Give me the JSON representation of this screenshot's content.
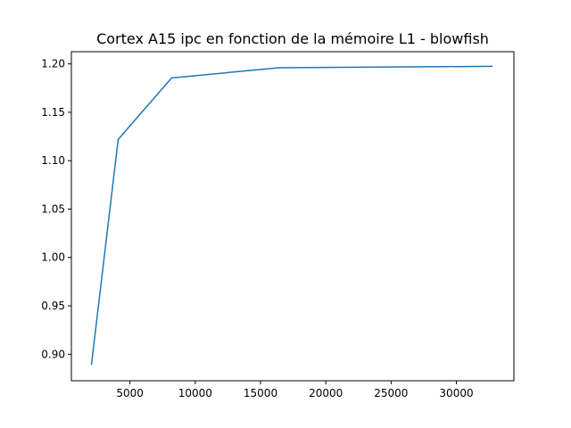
{
  "chart_data": {
    "type": "line",
    "title": "Cortex A15 ipc en fonction de la mémoire L1 - blowfish",
    "xlabel": "",
    "ylabel": "",
    "xlim": [
      512,
      34406
    ],
    "ylim": [
      0.8726,
      1.2126
    ],
    "xticks": [
      5000,
      10000,
      15000,
      20000,
      25000,
      30000
    ],
    "yticks": [
      0.9,
      0.95,
      1.0,
      1.05,
      1.1,
      1.15,
      1.2
    ],
    "xtick_labels": [
      "5000",
      "10000",
      "15000",
      "20000",
      "25000",
      "30000"
    ],
    "ytick_labels": [
      "0.90",
      "0.95",
      "1.00",
      "1.05",
      "1.10",
      "1.15",
      "1.20"
    ],
    "grid": false,
    "legend": "none",
    "series": [
      {
        "color": "#1f77b4",
        "x": [
          2048,
          4096,
          8192,
          16384,
          32768
        ],
        "y": [
          0.889,
          1.122,
          1.1855,
          1.196,
          1.1975
        ]
      }
    ]
  }
}
